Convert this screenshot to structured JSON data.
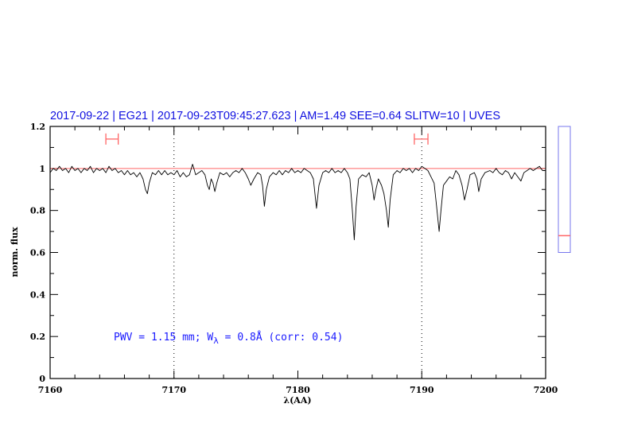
{
  "chart_data": {
    "type": "line",
    "title": "2017-09-22 | EG21 | 2017-09-23T09:45:27.623 | AM=1.49 SEE=0.64 SLITW=10 | UVES",
    "xlabel": "λ(AA)",
    "ylabel": "norm. flux",
    "xlim": [
      7160,
      7200
    ],
    "ylim": [
      0,
      1.2
    ],
    "xticks": [
      7160,
      7170,
      7180,
      7190,
      7200
    ],
    "yticks": [
      0,
      0.2,
      0.4,
      0.6,
      0.8,
      1,
      1.2
    ],
    "xtick_labels": [
      "7160",
      "7170",
      "7180",
      "7190",
      "7200"
    ],
    "ytick_labels": [
      "0",
      "0.2",
      "0.4",
      "0.6",
      "0.8",
      "1",
      "1.2"
    ],
    "grid": false,
    "reference_line_y": 1.0,
    "vertical_dotted_lines_x": [
      7170,
      7190
    ],
    "interval_markers": [
      {
        "x": [
          7164.5,
          7165.5
        ],
        "y": 1.14
      },
      {
        "x": [
          7189.4,
          7190.5
        ],
        "y": 1.14
      }
    ],
    "annotation": {
      "pwv_text": "PWV = 1.15 mm; W",
      "subscript": "λ",
      "rest_text": " = 0.8Å (corr: 0.54)"
    },
    "side_gauge": {
      "range": [
        0.6,
        1.2
      ],
      "value": 0.68
    },
    "colors": {
      "spectrum": "#000000",
      "reference_line": "#ff6666",
      "title": "#1010e0",
      "annotation": "#1a1aff",
      "markers": "#ff6666",
      "gauge": "#7777ee"
    },
    "series": [
      {
        "points": [
          [
            7160.0,
            0.98
          ],
          [
            7160.25,
            1.0
          ],
          [
            7160.5,
            0.99
          ],
          [
            7160.75,
            1.01
          ],
          [
            7161.0,
            0.99
          ],
          [
            7161.25,
            1.0
          ],
          [
            7161.5,
            0.98
          ],
          [
            7161.75,
            1.01
          ],
          [
            7162.0,
            0.99
          ],
          [
            7162.25,
            1.0
          ],
          [
            7162.5,
            0.98
          ],
          [
            7162.75,
            1.0
          ],
          [
            7163.0,
            0.99
          ],
          [
            7163.25,
            1.01
          ],
          [
            7163.5,
            0.98
          ],
          [
            7163.75,
            1.0
          ],
          [
            7164.0,
            0.99
          ],
          [
            7164.25,
            1.0
          ],
          [
            7164.5,
            0.98
          ],
          [
            7164.75,
            1.01
          ],
          [
            7165.0,
            0.99
          ],
          [
            7165.25,
            1.0
          ],
          [
            7165.5,
            0.98
          ],
          [
            7165.75,
            0.99
          ],
          [
            7166.0,
            0.97
          ],
          [
            7166.25,
            0.99
          ],
          [
            7166.5,
            0.97
          ],
          [
            7166.75,
            0.98
          ],
          [
            7167.0,
            0.96
          ],
          [
            7167.25,
            0.98
          ],
          [
            7167.5,
            0.95
          ],
          [
            7167.7,
            0.9
          ],
          [
            7167.85,
            0.88
          ],
          [
            7168.0,
            0.93
          ],
          [
            7168.25,
            0.98
          ],
          [
            7168.5,
            0.97
          ],
          [
            7168.75,
            0.99
          ],
          [
            7169.0,
            0.97
          ],
          [
            7169.25,
            0.99
          ],
          [
            7169.5,
            0.97
          ],
          [
            7169.75,
            0.98
          ],
          [
            7170.0,
            0.97
          ],
          [
            7170.25,
            0.99
          ],
          [
            7170.5,
            0.96
          ],
          [
            7170.75,
            0.98
          ],
          [
            7171.0,
            0.96
          ],
          [
            7171.25,
            0.97
          ],
          [
            7171.5,
            1.02
          ],
          [
            7171.6,
            1.0
          ],
          [
            7171.75,
            0.97
          ],
          [
            7172.0,
            0.98
          ],
          [
            7172.25,
            0.99
          ],
          [
            7172.5,
            0.97
          ],
          [
            7172.7,
            0.92
          ],
          [
            7172.85,
            0.9
          ],
          [
            7173.0,
            0.95
          ],
          [
            7173.15,
            0.93
          ],
          [
            7173.3,
            0.89
          ],
          [
            7173.45,
            0.93
          ],
          [
            7173.7,
            0.98
          ],
          [
            7174.0,
            0.97
          ],
          [
            7174.25,
            0.98
          ],
          [
            7174.5,
            0.96
          ],
          [
            7174.75,
            0.98
          ],
          [
            7175.0,
            0.99
          ],
          [
            7175.25,
            0.98
          ],
          [
            7175.5,
            1.0
          ],
          [
            7175.75,
            0.98
          ],
          [
            7176.0,
            0.95
          ],
          [
            7176.2,
            0.92
          ],
          [
            7176.45,
            0.95
          ],
          [
            7176.75,
            0.98
          ],
          [
            7177.0,
            0.97
          ],
          [
            7177.15,
            0.92
          ],
          [
            7177.3,
            0.82
          ],
          [
            7177.45,
            0.9
          ],
          [
            7177.7,
            0.96
          ],
          [
            7178.0,
            0.98
          ],
          [
            7178.25,
            0.97
          ],
          [
            7178.5,
            0.99
          ],
          [
            7178.75,
            0.97
          ],
          [
            7179.0,
            0.99
          ],
          [
            7179.25,
            0.98
          ],
          [
            7179.5,
            1.0
          ],
          [
            7179.75,
            0.98
          ],
          [
            7180.0,
            0.99
          ],
          [
            7180.25,
            0.98
          ],
          [
            7180.5,
            1.0
          ],
          [
            7180.75,
            0.99
          ],
          [
            7181.0,
            0.98
          ],
          [
            7181.25,
            0.95
          ],
          [
            7181.5,
            0.81
          ],
          [
            7181.7,
            0.92
          ],
          [
            7182.0,
            0.98
          ],
          [
            7182.25,
            0.99
          ],
          [
            7182.5,
            0.98
          ],
          [
            7182.75,
            1.0
          ],
          [
            7183.0,
            0.98
          ],
          [
            7183.25,
            0.99
          ],
          [
            7183.5,
            0.98
          ],
          [
            7183.75,
            1.0
          ],
          [
            7184.0,
            0.98
          ],
          [
            7184.2,
            0.95
          ],
          [
            7184.4,
            0.8
          ],
          [
            7184.55,
            0.66
          ],
          [
            7184.7,
            0.82
          ],
          [
            7184.9,
            0.95
          ],
          [
            7185.2,
            0.97
          ],
          [
            7185.5,
            0.96
          ],
          [
            7185.75,
            0.98
          ],
          [
            7186.0,
            0.92
          ],
          [
            7186.15,
            0.85
          ],
          [
            7186.3,
            0.9
          ],
          [
            7186.5,
            0.95
          ],
          [
            7186.75,
            0.92
          ],
          [
            7186.95,
            0.88
          ],
          [
            7187.15,
            0.8
          ],
          [
            7187.3,
            0.72
          ],
          [
            7187.45,
            0.85
          ],
          [
            7187.7,
            0.97
          ],
          [
            7188.0,
            0.99
          ],
          [
            7188.25,
            0.98
          ],
          [
            7188.5,
            1.0
          ],
          [
            7188.75,
            0.99
          ],
          [
            7189.0,
            1.0
          ],
          [
            7189.25,
            0.98
          ],
          [
            7189.5,
            1.0
          ],
          [
            7189.75,
            0.99
          ],
          [
            7190.0,
            1.01
          ],
          [
            7190.25,
            1.0
          ],
          [
            7190.5,
            0.99
          ],
          [
            7190.75,
            0.96
          ],
          [
            7191.0,
            0.93
          ],
          [
            7191.2,
            0.82
          ],
          [
            7191.4,
            0.7
          ],
          [
            7191.55,
            0.8
          ],
          [
            7191.75,
            0.92
          ],
          [
            7192.0,
            0.94
          ],
          [
            7192.25,
            0.96
          ],
          [
            7192.5,
            0.95
          ],
          [
            7192.75,
            0.99
          ],
          [
            7193.0,
            0.97
          ],
          [
            7193.25,
            0.92
          ],
          [
            7193.45,
            0.85
          ],
          [
            7193.65,
            0.9
          ],
          [
            7193.9,
            0.97
          ],
          [
            7194.25,
            0.98
          ],
          [
            7194.45,
            0.95
          ],
          [
            7194.6,
            0.89
          ],
          [
            7194.8,
            0.95
          ],
          [
            7195.1,
            0.98
          ],
          [
            7195.5,
            0.99
          ],
          [
            7195.75,
            0.98
          ],
          [
            7196.0,
            1.0
          ],
          [
            7196.25,
            0.98
          ],
          [
            7196.5,
            0.97
          ],
          [
            7196.75,
            0.99
          ],
          [
            7197.0,
            0.98
          ],
          [
            7197.25,
            0.95
          ],
          [
            7197.5,
            0.98
          ],
          [
            7197.75,
            0.96
          ],
          [
            7198.0,
            0.94
          ],
          [
            7198.25,
            0.98
          ],
          [
            7198.5,
            0.99
          ],
          [
            7198.75,
            1.0
          ],
          [
            7199.0,
            0.99
          ],
          [
            7199.25,
            1.0
          ],
          [
            7199.5,
            1.01
          ],
          [
            7199.75,
            0.99
          ],
          [
            7200.0,
            0.99
          ]
        ]
      }
    ]
  }
}
